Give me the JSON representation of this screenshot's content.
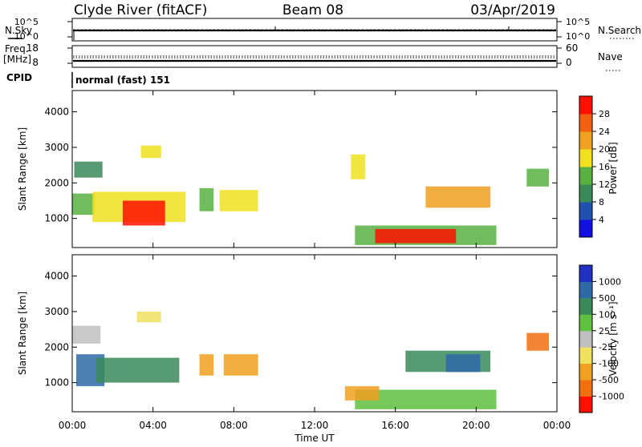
{
  "header": {
    "station": "Clyde River (fitACF)",
    "beam": "Beam 08",
    "date": "03/Apr/2019"
  },
  "top_panels": {
    "nsky_label": "N.Sky",
    "nsearch_label": "N.Search",
    "scale_hi_label": "10^5",
    "scale_lo_label": "10^0",
    "freq_label": "Freq.",
    "freq_unit": "[MHz]",
    "freq_ticks": [
      "18",
      "8"
    ],
    "nave_label": "Nave",
    "nave_ticks": [
      "60",
      "0"
    ],
    "cpid_label": "CPID",
    "cpid_value": "normal (fast) 151"
  },
  "colors": {
    "power_scale": [
      "#1010e0",
      "#2050b0",
      "#3a8a5a",
      "#58b040",
      "#f0e020",
      "#f0a020",
      "#f06010",
      "#ff1000"
    ],
    "velocity_scale": [
      "#2030c0",
      "#2e6aa8",
      "#3a8a5a",
      "#60c040",
      "#c0c0c0",
      "#f0e060",
      "#f0a020",
      "#f07010",
      "#ff1000"
    ]
  },
  "chart_data": [
    {
      "type": "heatmap",
      "title": "",
      "xlabel": "Time UT",
      "ylabel": "Slant Range [km]",
      "x_ticks": [
        "00:00",
        "04:00",
        "08:00",
        "12:00",
        "16:00",
        "20:00",
        "00:00"
      ],
      "xlim_hours": [
        0,
        24
      ],
      "y_ticks": [
        "1000",
        "2000",
        "3000",
        "4000"
      ],
      "ylim": [
        180,
        4600
      ],
      "colorbar": {
        "label": "Power [dB]",
        "tick_labels": [
          "4",
          "8",
          "12",
          "16",
          "20",
          "24",
          "28"
        ],
        "range": [
          0,
          30
        ]
      },
      "regions": [
        {
          "t0": 0.0,
          "t1": 1.1,
          "r0": 1100,
          "r1": 1700,
          "value": 12
        },
        {
          "t0": 0.1,
          "t1": 1.5,
          "r0": 2150,
          "r1": 2600,
          "value": 8
        },
        {
          "t0": 1.0,
          "t1": 5.6,
          "r0": 900,
          "r1": 1750,
          "value": 16
        },
        {
          "t0": 2.5,
          "t1": 4.6,
          "r0": 800,
          "r1": 1500,
          "value": 28
        },
        {
          "t0": 3.4,
          "t1": 4.4,
          "r0": 2700,
          "r1": 3050,
          "value": 16
        },
        {
          "t0": 6.3,
          "t1": 7.0,
          "r0": 1200,
          "r1": 1850,
          "value": 12
        },
        {
          "t0": 7.3,
          "t1": 9.2,
          "r0": 1200,
          "r1": 1800,
          "value": 16
        },
        {
          "t0": 13.8,
          "t1": 14.5,
          "r0": 2100,
          "r1": 2800,
          "value": 16
        },
        {
          "t0": 14.0,
          "t1": 21.0,
          "r0": 250,
          "r1": 800,
          "value": 12
        },
        {
          "t0": 15.0,
          "t1": 19.0,
          "r0": 300,
          "r1": 700,
          "value": 28
        },
        {
          "t0": 17.5,
          "t1": 20.7,
          "r0": 1300,
          "r1": 1900,
          "value": 20
        },
        {
          "t0": 22.5,
          "t1": 23.6,
          "r0": 1900,
          "r1": 2400,
          "value": 12
        }
      ]
    },
    {
      "type": "heatmap",
      "title": "",
      "xlabel": "Time UT",
      "ylabel": "Slant Range [km]",
      "x_ticks": [
        "00:00",
        "04:00",
        "08:00",
        "12:00",
        "16:00",
        "20:00",
        "00:00"
      ],
      "xlim_hours": [
        0,
        24
      ],
      "y_ticks": [
        "1000",
        "2000",
        "3000",
        "4000"
      ],
      "ylim": [
        180,
        4600
      ],
      "colorbar": {
        "label": "Velocity [m s⁻¹]",
        "tick_labels": [
          "1000",
          "500",
          "100",
          "25",
          "-25",
          "-100",
          "-500",
          "-1000"
        ],
        "range": [
          -1000,
          1000
        ]
      },
      "regions": [
        {
          "t0": 0.0,
          "t1": 1.4,
          "r0": 2100,
          "r1": 2600,
          "value": 0
        },
        {
          "t0": 0.2,
          "t1": 1.6,
          "r0": 900,
          "r1": 1800,
          "value": 600
        },
        {
          "t0": 1.2,
          "t1": 5.3,
          "r0": 1000,
          "r1": 1700,
          "value": 200
        },
        {
          "t0": 3.2,
          "t1": 4.4,
          "r0": 2700,
          "r1": 3000,
          "value": -50
        },
        {
          "t0": 6.3,
          "t1": 7.0,
          "r0": 1200,
          "r1": 1800,
          "value": -250
        },
        {
          "t0": 7.5,
          "t1": 9.2,
          "r0": 1200,
          "r1": 1800,
          "value": -300
        },
        {
          "t0": 14.0,
          "t1": 21.0,
          "r0": 250,
          "r1": 800,
          "value": 60
        },
        {
          "t0": 13.5,
          "t1": 15.2,
          "r0": 500,
          "r1": 900,
          "value": -400
        },
        {
          "t0": 16.5,
          "t1": 20.7,
          "r0": 1300,
          "r1": 1900,
          "value": 300
        },
        {
          "t0": 18.5,
          "t1": 20.2,
          "r0": 1300,
          "r1": 1800,
          "value": 900
        },
        {
          "t0": 22.5,
          "t1": 23.6,
          "r0": 1900,
          "r1": 2400,
          "value": -600
        }
      ]
    }
  ]
}
